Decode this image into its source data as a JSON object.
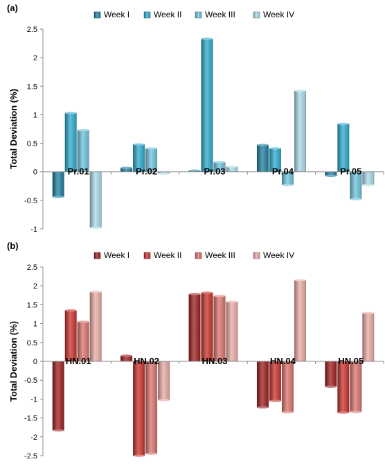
{
  "chart_data": [
    {
      "panel_label": "(a)",
      "type": "bar",
      "ylabel": "Total Deviation (%)",
      "ylim": [
        -1,
        2.5
      ],
      "yticks": [
        -1,
        -0.5,
        0,
        0.5,
        1,
        1.5,
        2,
        2.5
      ],
      "grid": false,
      "legend_position": "top",
      "categories": [
        "Pr.01",
        "Pr.02",
        "Pr.03",
        "Pr.04",
        "Pr.05"
      ],
      "series": [
        {
          "name": "Week I",
          "color": "#1f7fa0",
          "values": [
            -0.44,
            0.07,
            0.02,
            0.47,
            -0.07
          ]
        },
        {
          "name": "Week II",
          "color": "#2ea9cc",
          "values": [
            1.03,
            0.48,
            2.33,
            0.41,
            0.84
          ]
        },
        {
          "name": "Week III",
          "color": "#6ec3dc",
          "values": [
            0.73,
            0.41,
            0.17,
            -0.23,
            -0.48
          ]
        },
        {
          "name": "Week IV",
          "color": "#a9d9e8",
          "values": [
            -0.98,
            -0.03,
            0.09,
            1.42,
            -0.23
          ]
        }
      ]
    },
    {
      "panel_label": "(b)",
      "type": "bar",
      "ylabel": "Total Deviation (%)",
      "ylim": [
        -2.5,
        2.5
      ],
      "yticks": [
        -2.5,
        -2,
        -1.5,
        -1,
        -0.5,
        0,
        0.5,
        1,
        1.5,
        2,
        2.5
      ],
      "grid": false,
      "legend_position": "top",
      "categories": [
        "HN.01",
        "HN.02",
        "HN.03",
        "HN.04",
        "HN.05"
      ],
      "series": [
        {
          "name": "Week I",
          "color": "#9b1f1f",
          "values": [
            -1.83,
            0.15,
            1.78,
            -1.22,
            -0.67
          ]
        },
        {
          "name": "Week II",
          "color": "#c8322c",
          "values": [
            1.35,
            -2.5,
            1.82,
            -1.05,
            -1.36
          ]
        },
        {
          "name": "Week III",
          "color": "#d9736e",
          "values": [
            1.05,
            -2.45,
            1.73,
            -1.35,
            -1.34
          ]
        },
        {
          "name": "Week IV",
          "color": "#e8aaa6",
          "values": [
            1.84,
            -1.03,
            1.58,
            2.15,
            1.28
          ]
        }
      ]
    }
  ]
}
